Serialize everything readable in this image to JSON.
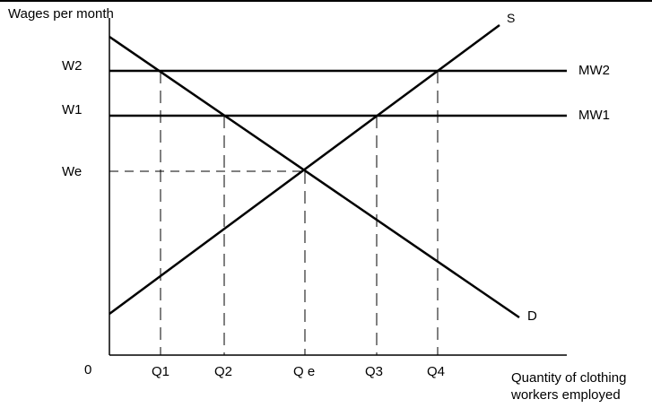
{
  "y_axis": {
    "title": "Wages per month"
  },
  "x_axis": {
    "title_line1": "Quantity of clothing",
    "title_line2": "workers employed"
  },
  "origin": "0",
  "wage_labels": {
    "w2": "W2",
    "w1": "W1",
    "we": "We"
  },
  "quantity_labels": {
    "q1": "Q1",
    "q2": "Q2",
    "qe": "Q e",
    "q3": "Q3",
    "q4": "Q4"
  },
  "curve_labels": {
    "supply": "S",
    "demand": "D",
    "mw2": "MW2",
    "mw1": "MW1"
  },
  "colors": {
    "line": "#000000",
    "background": "#ffffff"
  }
}
